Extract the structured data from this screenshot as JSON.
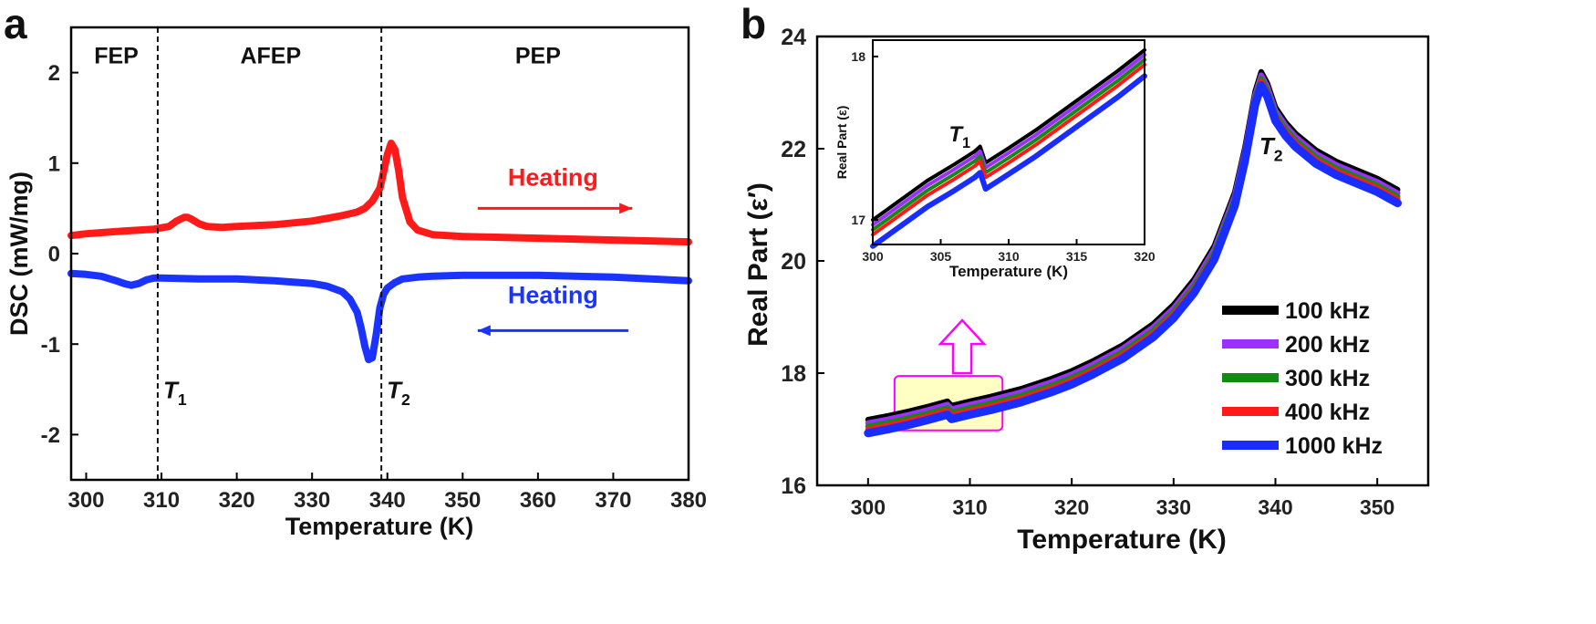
{
  "chart_data": [
    {
      "type": "line",
      "panel_label": "a",
      "xlabel": "Temperature (K)",
      "ylabel": "DSC (mW/mg)",
      "xlim": [
        298,
        380
      ],
      "ylim": [
        -2.5,
        2.5
      ],
      "xticks": [
        300,
        310,
        320,
        330,
        340,
        350,
        360,
        370,
        380
      ],
      "yticks": [
        -2,
        -1,
        0,
        1,
        2
      ],
      "xtick_labels": [
        "300",
        "310",
        "320",
        "330",
        "340",
        "350",
        "360",
        "370",
        "380"
      ],
      "ytick_labels": [
        "-2",
        "-1",
        "0",
        "1",
        "2"
      ],
      "phase_labels": [
        {
          "text": "FEP",
          "x": 304,
          "y": 2.1
        },
        {
          "text": "AFEP",
          "x": 324.5,
          "y": 2.1
        },
        {
          "text": "PEP",
          "x": 360,
          "y": 2.1
        }
      ],
      "vlines": [
        {
          "x": 309.5,
          "label_main": "T",
          "label_sub": "1",
          "label_y": -1.6
        },
        {
          "x": 339.2,
          "label_main": "T",
          "label_sub": "2",
          "label_y": -1.6
        }
      ],
      "annotations": [
        {
          "text": "Heating",
          "x": 362,
          "y": 0.75,
          "color": "#ff1a1a",
          "arrow_from": 352,
          "arrow_to": 372.5,
          "arrow_y": 0.5,
          "arrow_dir": "right"
        },
        {
          "text": "Heating",
          "x": 362,
          "y": -0.55,
          "color": "#1a33ff",
          "arrow_from": 372,
          "arrow_to": 352,
          "arrow_y": -0.85,
          "arrow_dir": "left"
        }
      ],
      "series": [
        {
          "name": "heating-red",
          "color": "#ff1a1a",
          "x": [
            298,
            300,
            305,
            309,
            311,
            312,
            313,
            313.5,
            314,
            315,
            316,
            318,
            320,
            325,
            330,
            334,
            336,
            337,
            338,
            339,
            339.5,
            340,
            340.5,
            341,
            341.5,
            342,
            343,
            344,
            346,
            350,
            355,
            360,
            370,
            380
          ],
          "y": [
            0.2,
            0.22,
            0.25,
            0.27,
            0.3,
            0.36,
            0.4,
            0.4,
            0.38,
            0.33,
            0.3,
            0.29,
            0.3,
            0.32,
            0.36,
            0.42,
            0.46,
            0.5,
            0.58,
            0.72,
            0.9,
            1.1,
            1.22,
            1.15,
            0.92,
            0.62,
            0.35,
            0.26,
            0.21,
            0.19,
            0.18,
            0.17,
            0.15,
            0.13
          ]
        },
        {
          "name": "cooling-blue",
          "color": "#1a33ff",
          "x": [
            298,
            300,
            302,
            304,
            305,
            306,
            307,
            308,
            309,
            310,
            315,
            320,
            325,
            330,
            332,
            334,
            335,
            336,
            336.5,
            337,
            337.5,
            338,
            338.5,
            339,
            339.5,
            340,
            341,
            342,
            344,
            346,
            350,
            355,
            360,
            370,
            380
          ],
          "y": [
            -0.22,
            -0.23,
            -0.25,
            -0.3,
            -0.33,
            -0.35,
            -0.33,
            -0.29,
            -0.27,
            -0.27,
            -0.28,
            -0.28,
            -0.3,
            -0.33,
            -0.36,
            -0.42,
            -0.5,
            -0.65,
            -0.82,
            -1.02,
            -1.17,
            -1.15,
            -0.9,
            -0.6,
            -0.45,
            -0.38,
            -0.32,
            -0.28,
            -0.26,
            -0.25,
            -0.24,
            -0.24,
            -0.24,
            -0.26,
            -0.3
          ]
        }
      ]
    },
    {
      "type": "line",
      "panel_label": "b",
      "xlabel": "Temperature (K)",
      "ylabel": "Real Part (ε′)",
      "xlim": [
        295,
        355
      ],
      "ylim": [
        16,
        24
      ],
      "xticks": [
        300,
        310,
        320,
        330,
        340,
        350
      ],
      "yticks": [
        16,
        18,
        20,
        22,
        24
      ],
      "xtick_labels": [
        "300",
        "310",
        "320",
        "330",
        "340",
        "350"
      ],
      "ytick_labels": [
        "16",
        "18",
        "20",
        "22",
        "24"
      ],
      "peak_label": {
        "main": "T",
        "sub": "2",
        "x": 339.5,
        "y": 21.9
      },
      "highlight_box": {
        "x0": 302.6,
        "x1": 313.2,
        "y0": 16.98,
        "y1": 17.95,
        "fill": "#ffffc4",
        "stroke": "#ff00ff"
      },
      "legend": [
        {
          "label": "100 kHz",
          "color": "#000000"
        },
        {
          "label": "200 kHz",
          "color": "#9b30ff"
        },
        {
          "label": "300 kHz",
          "color": "#138a13"
        },
        {
          "label": "400 kHz",
          "color": "#ff1a1a"
        },
        {
          "label": "1000 kHz",
          "color": "#1a2dff"
        }
      ],
      "curve": {
        "x": [
          300,
          302,
          304,
          306,
          307.8,
          308.2,
          310,
          312,
          315,
          318,
          320,
          322,
          325,
          328,
          330,
          332,
          334,
          336,
          337,
          338,
          338.6,
          339.2,
          340,
          341,
          342,
          344,
          346,
          348,
          350,
          352
        ],
        "y": [
          17.05,
          17.12,
          17.2,
          17.29,
          17.38,
          17.3,
          17.38,
          17.46,
          17.6,
          17.78,
          17.92,
          18.09,
          18.38,
          18.76,
          19.1,
          19.55,
          20.15,
          21.1,
          21.9,
          22.9,
          23.25,
          23.05,
          22.62,
          22.35,
          22.15,
          21.85,
          21.65,
          21.5,
          21.35,
          21.15
        ]
      },
      "offsets": [
        0.12,
        0.06,
        0.0,
        -0.05,
        -0.12
      ],
      "inset": {
        "xlabel": "Temperature (K)",
        "ylabel": "Real Part (ε)",
        "xlim": [
          300,
          320
        ],
        "ylim": [
          16.85,
          18.1
        ],
        "xticks": [
          300,
          305,
          310,
          315,
          320
        ],
        "xtick_labels": [
          "300",
          "305",
          "310",
          "315",
          "320"
        ],
        "yticks": [
          17,
          18
        ],
        "ytick_labels": [
          "17",
          "18"
        ],
        "label_main": "T",
        "label_sub": "1",
        "label_x": 306.8,
        "label_y": 17.48,
        "curve": {
          "x": [
            300,
            302,
            304,
            306,
            307.5,
            307.9,
            308.3,
            310,
            312,
            314,
            316,
            318,
            320
          ],
          "y": [
            17.0,
            17.12,
            17.24,
            17.34,
            17.42,
            17.45,
            17.35,
            17.44,
            17.55,
            17.67,
            17.79,
            17.91,
            18.04
          ]
        },
        "offsets": [
          0.0,
          -0.03,
          -0.06,
          -0.09,
          -0.16
        ]
      }
    }
  ]
}
